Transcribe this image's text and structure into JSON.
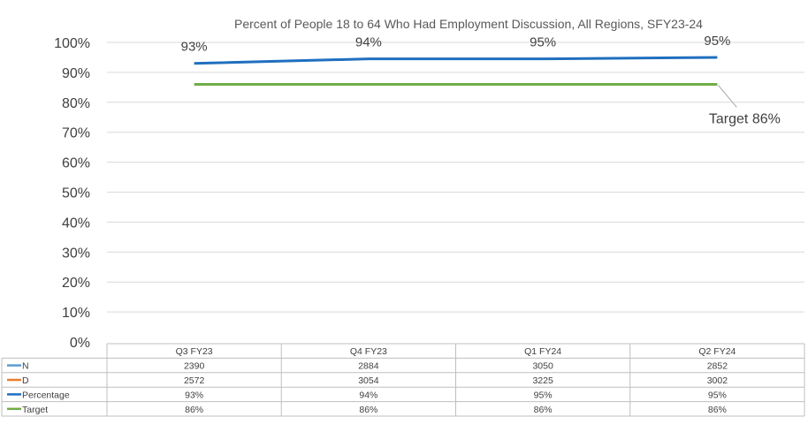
{
  "chart_data": {
    "type": "line",
    "title": "Percent of People 18 to 64 Who Had Employment Discussion, All Regions, SFY23-24",
    "categories": [
      "Q3 FY23",
      "Q4 FY23",
      "Q1 FY24",
      "Q2 FY24"
    ],
    "ylim": [
      0,
      100
    ],
    "y_ticks": [
      "100%",
      "90%",
      "80%",
      "70%",
      "60%",
      "50%",
      "40%",
      "30%",
      "20%",
      "10%",
      "0%"
    ],
    "grid": true,
    "legend_placement": "data-table",
    "series": [
      {
        "name": "N",
        "color": "#5b9bd5",
        "plotted": false,
        "table": [
          "2390",
          "2884",
          "3050",
          "2852"
        ],
        "values": [
          2390,
          2884,
          3050,
          2852
        ]
      },
      {
        "name": "D",
        "color": "#ed7d31",
        "plotted": false,
        "table": [
          "2572",
          "3054",
          "3225",
          "3002"
        ],
        "values": [
          2572,
          3054,
          3225,
          3002
        ]
      },
      {
        "name": "Percentage",
        "color": "#1f6fbf",
        "plotted": true,
        "table": [
          "93%",
          "94%",
          "95%",
          "95%"
        ],
        "values": [
          93,
          94.5,
          94.5,
          95
        ],
        "labels": [
          "93%",
          "94%",
          "95%",
          "95%"
        ]
      },
      {
        "name": "Target",
        "color": "#70ad47",
        "plotted": true,
        "table": [
          "86%",
          "86%",
          "86%",
          "86%"
        ],
        "values": [
          86,
          86,
          86,
          86
        ]
      }
    ],
    "annotations": [
      {
        "text": "Target 86%",
        "series": "Target",
        "point": 3
      }
    ]
  }
}
